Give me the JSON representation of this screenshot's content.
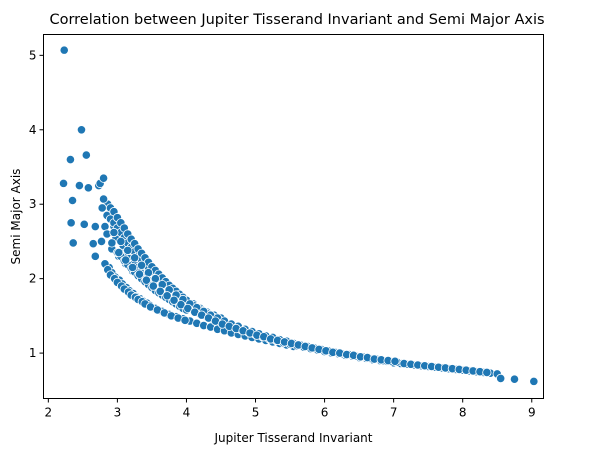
{
  "chart_data": {
    "type": "scatter",
    "title": "Correlation between Jupiter Tisserand Invariant and Semi Major Axis",
    "xlabel": "Jupiter Tisserand Invariant",
    "ylabel": "Semi Major Axis",
    "xlim": [
      1.93,
      9.17
    ],
    "ylim": [
      0.39,
      5.28
    ],
    "xticks": [
      "2",
      "3",
      "4",
      "5",
      "6",
      "7",
      "8",
      "9"
    ],
    "yticks": [
      "1",
      "2",
      "3",
      "4",
      "5"
    ],
    "grid": false,
    "legend": "none",
    "point_color": "#1f77b4",
    "x": [
      2.23,
      2.22,
      2.48,
      2.55,
      2.32,
      2.33,
      2.45,
      2.35,
      2.58,
      2.52,
      2.65,
      2.68,
      2.36,
      2.68,
      2.73,
      2.75,
      2.8,
      2.86,
      2.9,
      2.95,
      3.0,
      3.05,
      3.1,
      3.15,
      3.2,
      3.25,
      3.3,
      3.35,
      3.4,
      3.5,
      3.6,
      3.7,
      3.8,
      3.9,
      4.0,
      4.1,
      4.2,
      4.3,
      4.4,
      4.5,
      4.6,
      4.7,
      4.8,
      4.9,
      5.0,
      5.1,
      5.2,
      5.3,
      5.4,
      5.5,
      5.6,
      5.7,
      5.8,
      5.9,
      6.0,
      6.1,
      6.2,
      6.3,
      6.4,
      6.5,
      6.6,
      6.7,
      6.8,
      6.9,
      7.0,
      7.1,
      7.2,
      7.3,
      7.4,
      7.5,
      7.6,
      7.7,
      7.8,
      7.9,
      8.0,
      8.1,
      8.2,
      8.3,
      8.4,
      8.5,
      8.55,
      8.75,
      9.03,
      2.78,
      2.82,
      2.8,
      2.77,
      2.85,
      2.92,
      2.98,
      3.02,
      3.08,
      3.12,
      3.18,
      3.22,
      3.28,
      3.32,
      3.38,
      3.42,
      3.45,
      3.52,
      3.55,
      3.62,
      3.65,
      3.72,
      3.75,
      3.82,
      3.85,
      3.92,
      3.95,
      4.05,
      4.15,
      4.25,
      4.35,
      4.45,
      4.55,
      4.65,
      4.75,
      4.85,
      4.95,
      5.05,
      5.15,
      5.25,
      5.35,
      5.45,
      5.55,
      5.65,
      5.75,
      5.85,
      5.95,
      6.05,
      6.15,
      6.25,
      6.35,
      6.45,
      6.55,
      6.65,
      6.75,
      6.85,
      6.95,
      7.05,
      7.15,
      7.25,
      7.35,
      7.45,
      7.55,
      7.65,
      7.75,
      7.85,
      7.95,
      8.05,
      8.15,
      8.25,
      8.35,
      2.85,
      2.9,
      2.95,
      3.0,
      3.05,
      3.1,
      3.15,
      3.2,
      3.25,
      3.3,
      3.35,
      3.4,
      3.45,
      3.5,
      3.6,
      3.7,
      3.8,
      3.9,
      4.0,
      4.1,
      4.2,
      4.3,
      4.4,
      4.5,
      2.88,
      2.92,
      2.97,
      3.03,
      3.07,
      3.13,
      3.17,
      3.23,
      3.27,
      3.33,
      3.37,
      3.43,
      3.47,
      3.55,
      3.65,
      3.75,
      3.85,
      3.95,
      4.05,
      4.15,
      4.25,
      4.35,
      4.45,
      4.55,
      4.65,
      4.75,
      4.85,
      4.95,
      5.05,
      5.15,
      5.25,
      5.35,
      5.45,
      5.55,
      2.82,
      2.86,
      2.9,
      2.96,
      3.0,
      3.06,
      3.1,
      3.16,
      3.2,
      3.26,
      3.3,
      3.36,
      3.4,
      3.48,
      3.58,
      3.68,
      3.78,
      3.88,
      3.98,
      2.9,
      2.95,
      3.0,
      3.05,
      3.1,
      3.15,
      3.2,
      3.25,
      3.3,
      3.35,
      3.4,
      3.45,
      3.5,
      3.55,
      3.6,
      3.65,
      3.7,
      3.75,
      3.8,
      3.85,
      3.9,
      3.95,
      4.0,
      4.1,
      4.2,
      4.3,
      4.4,
      4.5,
      4.6,
      4.7,
      4.8,
      4.9,
      5.0,
      5.1,
      5.2,
      5.3,
      5.4,
      5.5,
      5.6,
      5.7,
      5.8,
      5.9,
      6.0,
      3.0,
      3.05,
      3.1,
      3.15,
      3.2,
      3.25,
      3.3,
      3.35,
      3.4,
      3.45,
      3.5,
      3.55,
      3.6,
      3.65,
      3.7,
      3.75,
      3.8,
      3.85,
      3.9,
      3.95,
      4.0,
      2.95,
      3.05,
      3.15,
      3.25,
      3.35,
      3.45,
      3.55,
      3.65,
      3.75,
      3.85,
      3.95,
      4.05,
      4.15,
      4.25,
      4.35,
      4.45,
      4.55,
      4.65,
      4.75,
      4.85,
      4.95,
      5.05,
      5.15,
      5.25,
      5.35,
      5.45,
      2.92,
      3.02,
      3.12,
      3.22,
      3.32,
      3.42,
      3.52,
      3.62,
      3.72,
      3.82,
      3.92,
      4.02,
      4.12,
      4.22,
      4.32,
      4.42,
      4.52,
      4.62,
      4.72,
      4.82,
      4.92,
      5.02,
      5.12,
      5.22,
      5.32,
      5.42,
      5.52,
      5.62,
      5.72,
      5.82,
      5.92,
      6.02,
      6.12,
      6.22,
      6.32,
      6.42,
      6.52,
      6.62,
      6.72,
      6.82,
      6.92,
      7.02
    ],
    "y": [
      5.07,
      3.28,
      4.0,
      3.66,
      3.6,
      2.75,
      3.25,
      3.05,
      3.22,
      2.73,
      2.47,
      2.3,
      2.48,
      2.7,
      3.25,
      3.28,
      3.35,
      3.0,
      2.85,
      2.7,
      2.58,
      2.5,
      2.42,
      2.35,
      2.3,
      2.22,
      2.15,
      2.1,
      2.05,
      1.97,
      1.88,
      1.8,
      1.73,
      1.68,
      1.62,
      1.57,
      1.52,
      1.48,
      1.44,
      1.4,
      1.36,
      1.33,
      1.3,
      1.27,
      1.24,
      1.21,
      1.19,
      1.16,
      1.14,
      1.12,
      1.1,
      1.08,
      1.06,
      1.04,
      1.02,
      1.0,
      0.99,
      0.97,
      0.96,
      0.94,
      0.93,
      0.91,
      0.9,
      0.89,
      0.87,
      0.86,
      0.85,
      0.84,
      0.83,
      0.82,
      0.81,
      0.8,
      0.79,
      0.78,
      0.77,
      0.76,
      0.75,
      0.74,
      0.73,
      0.72,
      0.66,
      0.65,
      0.62,
      2.95,
      2.7,
      3.07,
      2.5,
      2.6,
      2.4,
      2.55,
      2.3,
      2.45,
      2.2,
      2.38,
      2.1,
      2.28,
      2.05,
      2.18,
      1.98,
      2.12,
      1.92,
      2.05,
      1.85,
      1.98,
      1.78,
      1.9,
      1.72,
      1.82,
      1.66,
      1.74,
      1.64,
      1.58,
      1.53,
      1.49,
      1.45,
      1.41,
      1.37,
      1.34,
      1.31,
      1.28,
      1.25,
      1.22,
      1.2,
      1.17,
      1.15,
      1.13,
      1.11,
      1.09,
      1.07,
      1.05,
      1.03,
      1.01,
      0.99,
      0.98,
      0.96,
      0.95,
      0.93,
      0.92,
      0.9,
      0.89,
      0.88,
      0.86,
      0.85,
      0.84,
      0.83,
      0.82,
      0.81,
      0.8,
      0.79,
      0.78,
      0.77,
      0.76,
      0.75,
      0.74,
      2.85,
      2.8,
      2.75,
      2.68,
      2.62,
      2.55,
      2.48,
      2.42,
      2.36,
      2.3,
      2.25,
      2.19,
      2.14,
      2.09,
      2.0,
      1.92,
      1.85,
      1.78,
      1.71,
      1.66,
      1.6,
      1.55,
      1.51,
      1.47,
      2.15,
      2.08,
      2.02,
      1.98,
      1.93,
      1.88,
      1.84,
      1.8,
      1.76,
      1.73,
      1.7,
      1.67,
      1.64,
      1.6,
      1.56,
      1.52,
      1.49,
      1.46,
      1.43,
      1.4,
      1.37,
      1.35,
      1.32,
      1.3,
      1.27,
      1.25,
      1.23,
      1.21,
      1.19,
      1.17,
      1.15,
      1.13,
      1.11,
      1.09,
      2.2,
      2.12,
      2.05,
      2.0,
      1.95,
      1.9,
      1.86,
      1.82,
      1.78,
      1.75,
      1.72,
      1.69,
      1.66,
      1.62,
      1.58,
      1.54,
      1.5,
      1.47,
      1.44,
      2.95,
      2.9,
      2.82,
      2.75,
      2.68,
      2.6,
      2.53,
      2.47,
      2.4,
      2.34,
      2.28,
      2.22,
      2.16,
      2.11,
      2.06,
      2.01,
      1.96,
      1.91,
      1.87,
      1.83,
      1.79,
      1.75,
      1.71,
      1.64,
      1.58,
      1.53,
      1.48,
      1.43,
      1.39,
      1.35,
      1.31,
      1.28,
      1.25,
      1.22,
      1.19,
      1.17,
      1.14,
      1.12,
      1.1,
      1.08,
      1.06,
      1.04,
      1.02,
      2.35,
      2.3,
      2.24,
      2.19,
      2.14,
      2.09,
      2.04,
      2.0,
      1.96,
      1.92,
      1.88,
      1.84,
      1.81,
      1.78,
      1.75,
      1.72,
      1.69,
      1.66,
      1.63,
      1.6,
      1.58,
      2.62,
      2.5,
      2.38,
      2.28,
      2.18,
      2.08,
      2.0,
      1.92,
      1.85,
      1.78,
      1.72,
      1.66,
      1.61,
      1.56,
      1.51,
      1.47,
      1.43,
      1.39,
      1.36,
      1.32,
      1.29,
      1.26,
      1.23,
      1.21,
      1.18,
      1.16,
      2.48,
      2.35,
      2.25,
      2.15,
      2.06,
      1.98,
      1.9,
      1.83,
      1.77,
      1.71,
      1.65,
      1.6,
      1.55,
      1.51,
      1.47,
      1.43,
      1.39,
      1.36,
      1.33,
      1.3,
      1.27,
      1.24,
      1.22,
      1.19,
      1.17,
      1.15,
      1.13,
      1.11,
      1.09,
      1.07,
      1.05,
      1.03,
      1.01,
      1.0,
      0.98,
      0.97,
      0.95,
      0.94,
      0.92,
      0.91,
      0.9,
      0.89
    ]
  }
}
